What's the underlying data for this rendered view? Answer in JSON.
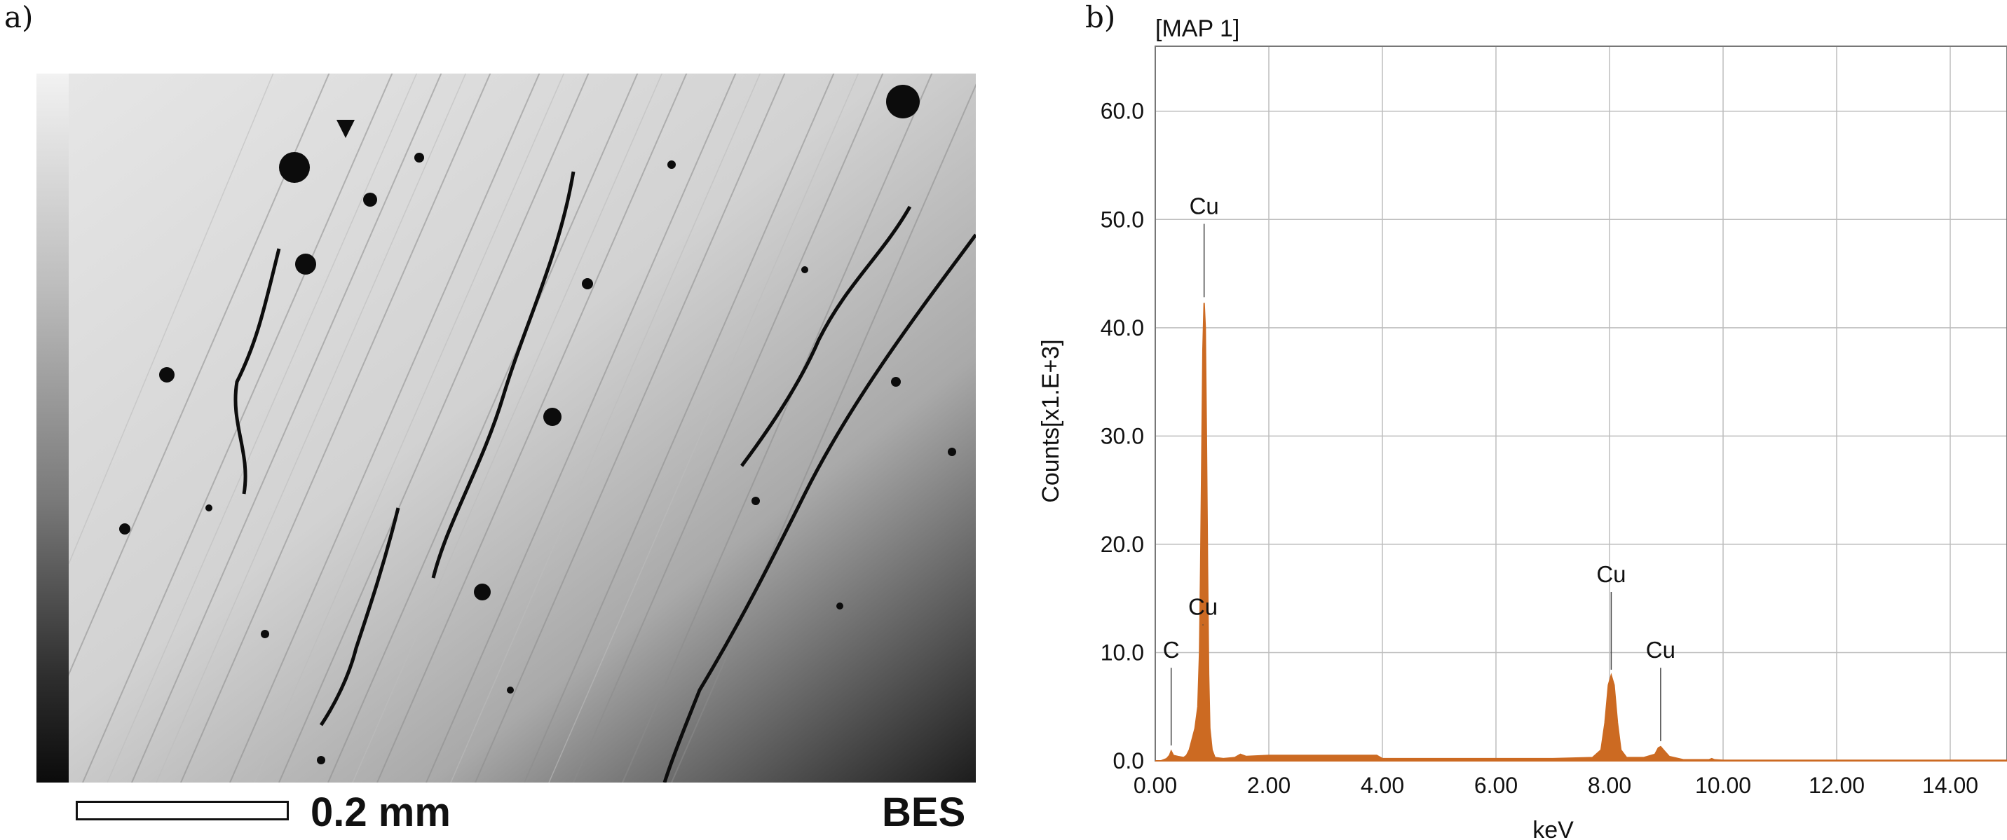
{
  "panels": {
    "a_label": "a)",
    "b_label": "b)"
  },
  "micrograph": {
    "scale_bar_label": "0.2 mm",
    "detector_label": "BES"
  },
  "chart_data": {
    "type": "area",
    "title": "[MAP 1]",
    "xlabel": "keV",
    "ylabel": "Counts[x1.E+3]",
    "xlim": [
      0,
      15
    ],
    "ylim": [
      0,
      66
    ],
    "grid": true,
    "xticks": [
      0,
      2,
      4,
      6,
      8,
      10,
      12,
      14
    ],
    "xtick_labels": [
      "0.00",
      "2.00",
      "4.00",
      "6.00",
      "8.00",
      "10.00",
      "12.00",
      "14.00"
    ],
    "yticks": [
      0,
      10,
      20,
      30,
      40,
      50,
      60
    ],
    "ytick_labels": [
      "0.0",
      "10.0",
      "20.0",
      "30.0",
      "40.0",
      "50.0",
      "60.0"
    ],
    "color": "#cc6a22",
    "series": [
      {
        "x": [
          0.0,
          0.1,
          0.2,
          0.25,
          0.28,
          0.32,
          0.4,
          0.5,
          0.55,
          0.6,
          0.7,
          0.75,
          0.78,
          0.8,
          0.82,
          0.84,
          0.86,
          0.88,
          0.9,
          0.92,
          0.94,
          0.96,
          1.0,
          1.05,
          1.2,
          1.4,
          1.5,
          1.6,
          2.0,
          3.0,
          3.9,
          4.0,
          5.0,
          6.0,
          7.0,
          7.7,
          7.85,
          7.92,
          7.98,
          8.03,
          8.08,
          8.14,
          8.2,
          8.3,
          8.6,
          8.8,
          8.86,
          8.9,
          8.95,
          9.05,
          9.3,
          9.75,
          9.8,
          9.85,
          10.0,
          12.0,
          14.0,
          15.0
        ],
        "y": [
          0.0,
          0.0,
          0.2,
          0.5,
          0.9,
          0.5,
          0.4,
          0.3,
          0.5,
          1.0,
          3.0,
          5.0,
          10.0,
          18.0,
          28.0,
          38.0,
          42.3,
          40.0,
          30.0,
          18.0,
          8.0,
          3.0,
          1.0,
          0.3,
          0.2,
          0.3,
          0.6,
          0.4,
          0.5,
          0.5,
          0.5,
          0.2,
          0.2,
          0.2,
          0.2,
          0.3,
          1.0,
          3.5,
          7.0,
          7.9,
          7.0,
          3.5,
          1.0,
          0.3,
          0.3,
          0.6,
          1.2,
          1.3,
          1.0,
          0.4,
          0.1,
          0.1,
          0.2,
          0.1,
          0.05,
          0.05,
          0.05,
          0.05
        ]
      }
    ],
    "annotations": [
      {
        "text": "C",
        "x": 0.28,
        "y": 0.9,
        "label_y": 9.5
      },
      {
        "text": "Cu",
        "x": 0.86,
        "y": 42.3,
        "label_y": 50.5
      },
      {
        "text": "Cu",
        "x": 0.84,
        "y": 12.0,
        "label_y": 13.5
      },
      {
        "text": "Cu",
        "x": 8.03,
        "y": 7.9,
        "label_y": 16.5
      },
      {
        "text": "Cu",
        "x": 8.9,
        "y": 1.3,
        "label_y": 9.5
      }
    ]
  }
}
